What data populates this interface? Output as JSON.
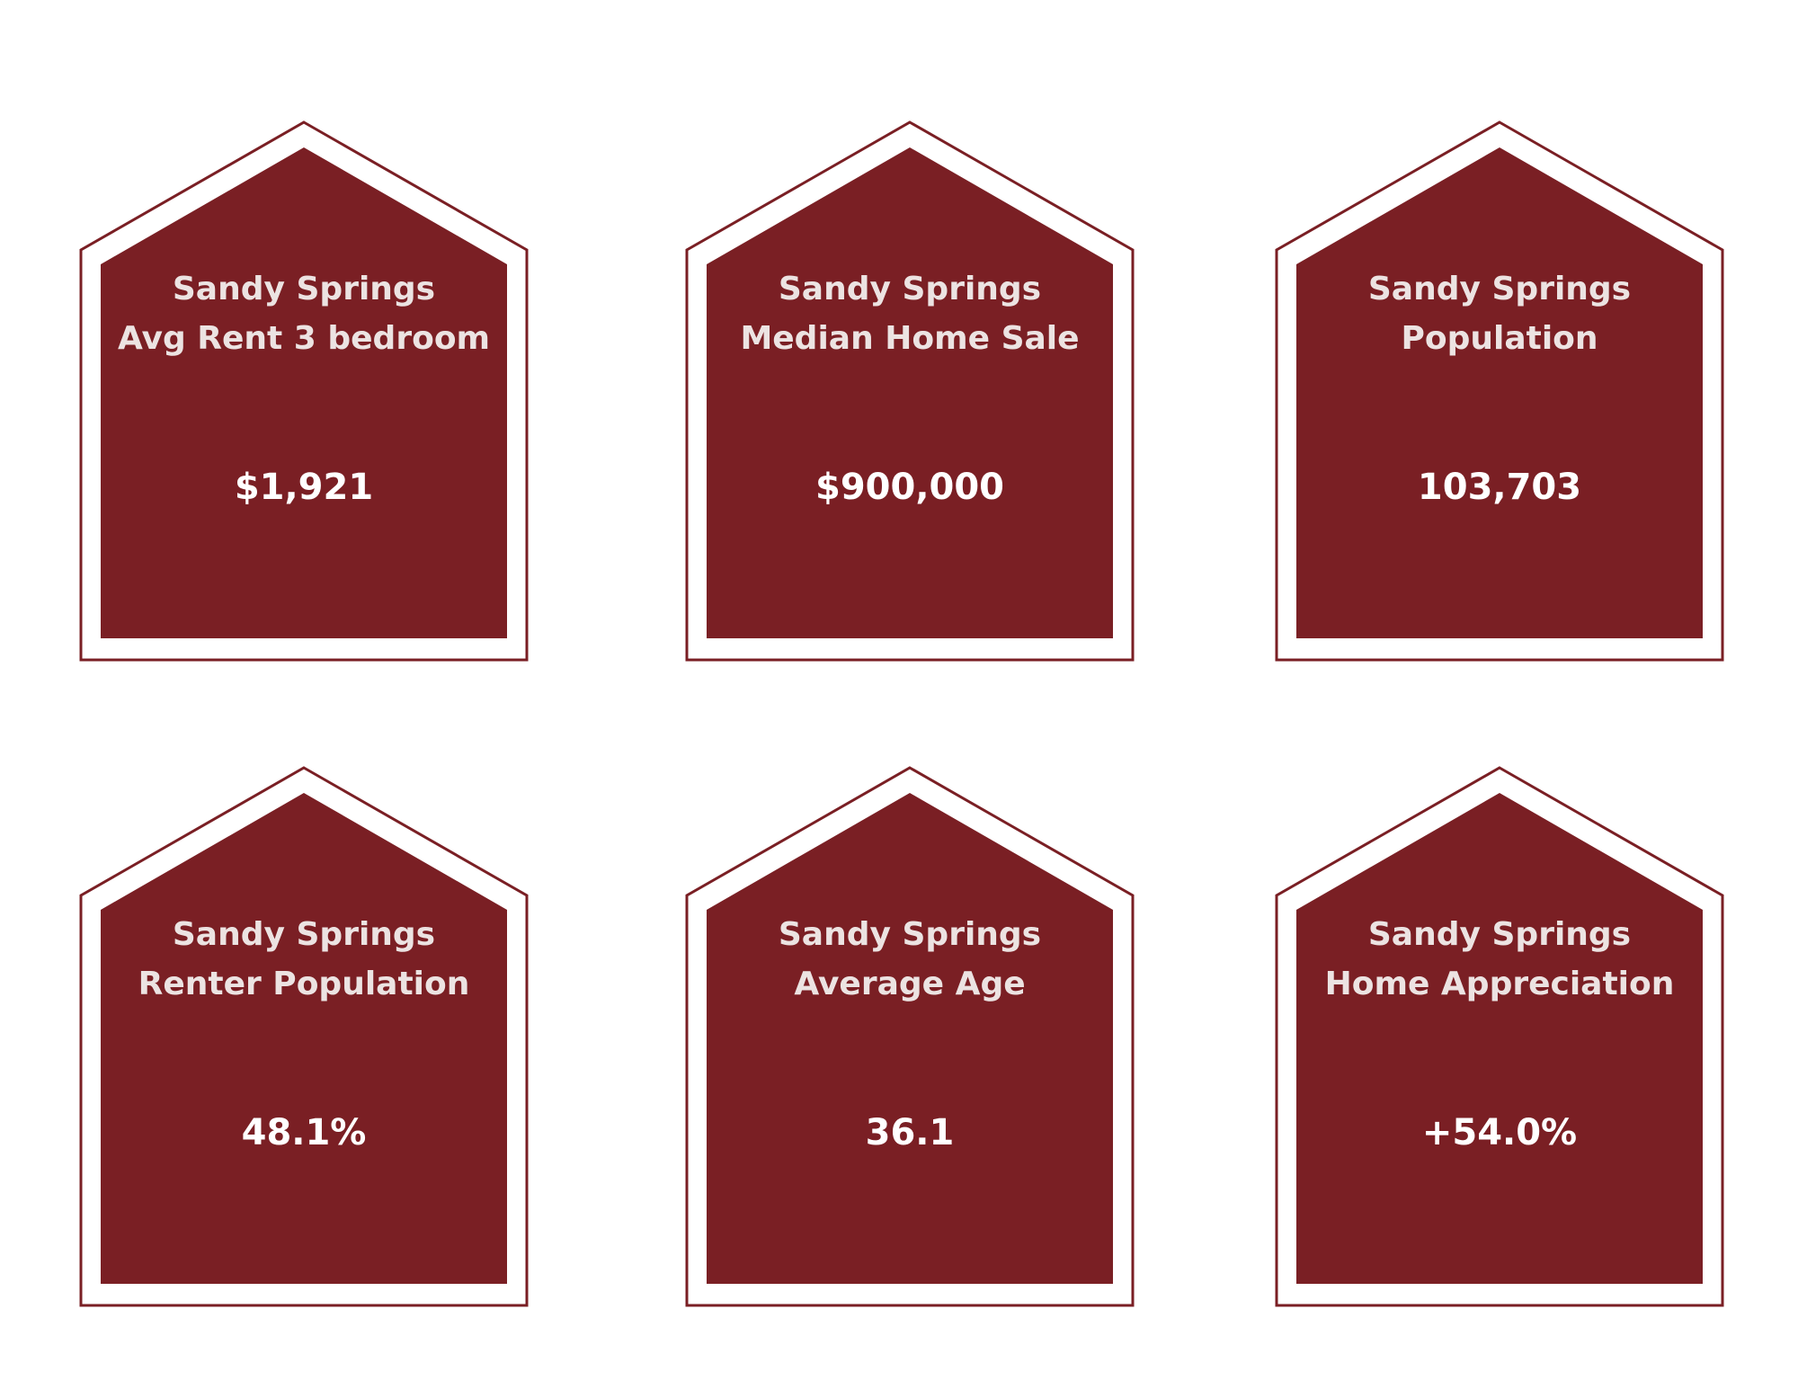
{
  "colors": {
    "house_fill": "#7a1f24",
    "title_text": "#ece3e2",
    "value_text": "#ffffff",
    "background": "#ffffff"
  },
  "cards": [
    {
      "line1": "Sandy Springs",
      "line2": "Avg Rent 3 bedroom",
      "value": "$1,921"
    },
    {
      "line1": "Sandy Springs",
      "line2": "Median Home Sale",
      "value": "$900,000"
    },
    {
      "line1": "Sandy Springs",
      "line2": "Population",
      "value": "103,703"
    },
    {
      "line1": "Sandy Springs",
      "line2": "Renter Population",
      "value": "48.1%"
    },
    {
      "line1": "Sandy Springs",
      "line2": "Average Age",
      "value": "36.1"
    },
    {
      "line1": "Sandy Springs",
      "line2": "Home Appreciation",
      "value": "+54.0%"
    }
  ]
}
